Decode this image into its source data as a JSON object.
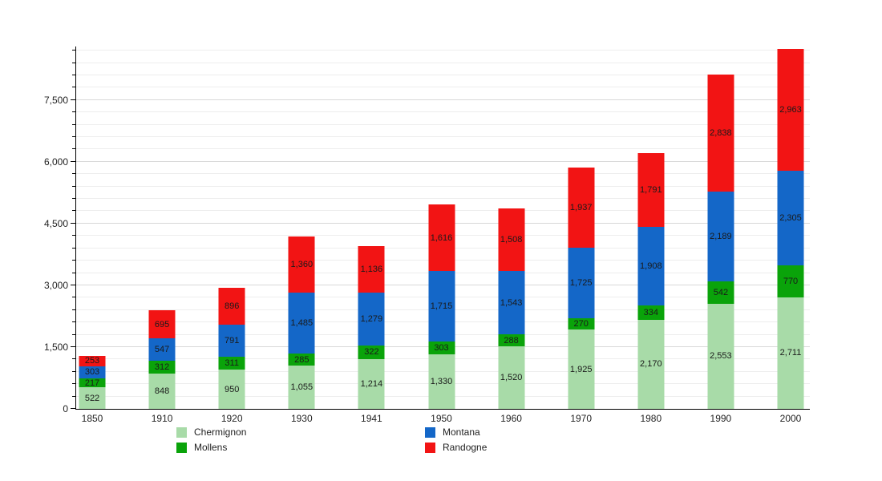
{
  "chart_data": {
    "type": "bar",
    "stacked": true,
    "categories": [
      "1850",
      "1910",
      "1920",
      "1930",
      "1941",
      "1950",
      "1960",
      "1970",
      "1980",
      "1990",
      "2000"
    ],
    "series": [
      {
        "name": "Chermignon",
        "color": "#a8dba8",
        "values": [
          522,
          848,
          950,
          1055,
          1214,
          1330,
          1520,
          1925,
          2170,
          2553,
          2711
        ]
      },
      {
        "name": "Mollens",
        "color": "#0aa30a",
        "values": [
          217,
          312,
          311,
          285,
          322,
          303,
          288,
          270,
          334,
          542,
          770
        ]
      },
      {
        "name": "Montana",
        "color": "#1467c8",
        "values": [
          303,
          547,
          791,
          1485,
          1279,
          1715,
          1543,
          1725,
          1908,
          2189,
          2305
        ]
      },
      {
        "name": "Randogne",
        "color": "#f21414",
        "values": [
          253,
          695,
          896,
          1360,
          1136,
          1616,
          1508,
          1937,
          1791,
          2838,
          2963
        ]
      }
    ],
    "xlabel": "",
    "ylabel": "",
    "ylim": [
      0,
      8800
    ],
    "yticks": [
      0,
      1500,
      3000,
      4500,
      6000,
      7500
    ],
    "minor_grid_step": 300,
    "grid": true,
    "legend_position": "bottom",
    "value_labels": "inside-segments",
    "axis_color": "#000000",
    "major_grid_color": "#d8d8d8",
    "minor_grid_color": "#ededed"
  }
}
